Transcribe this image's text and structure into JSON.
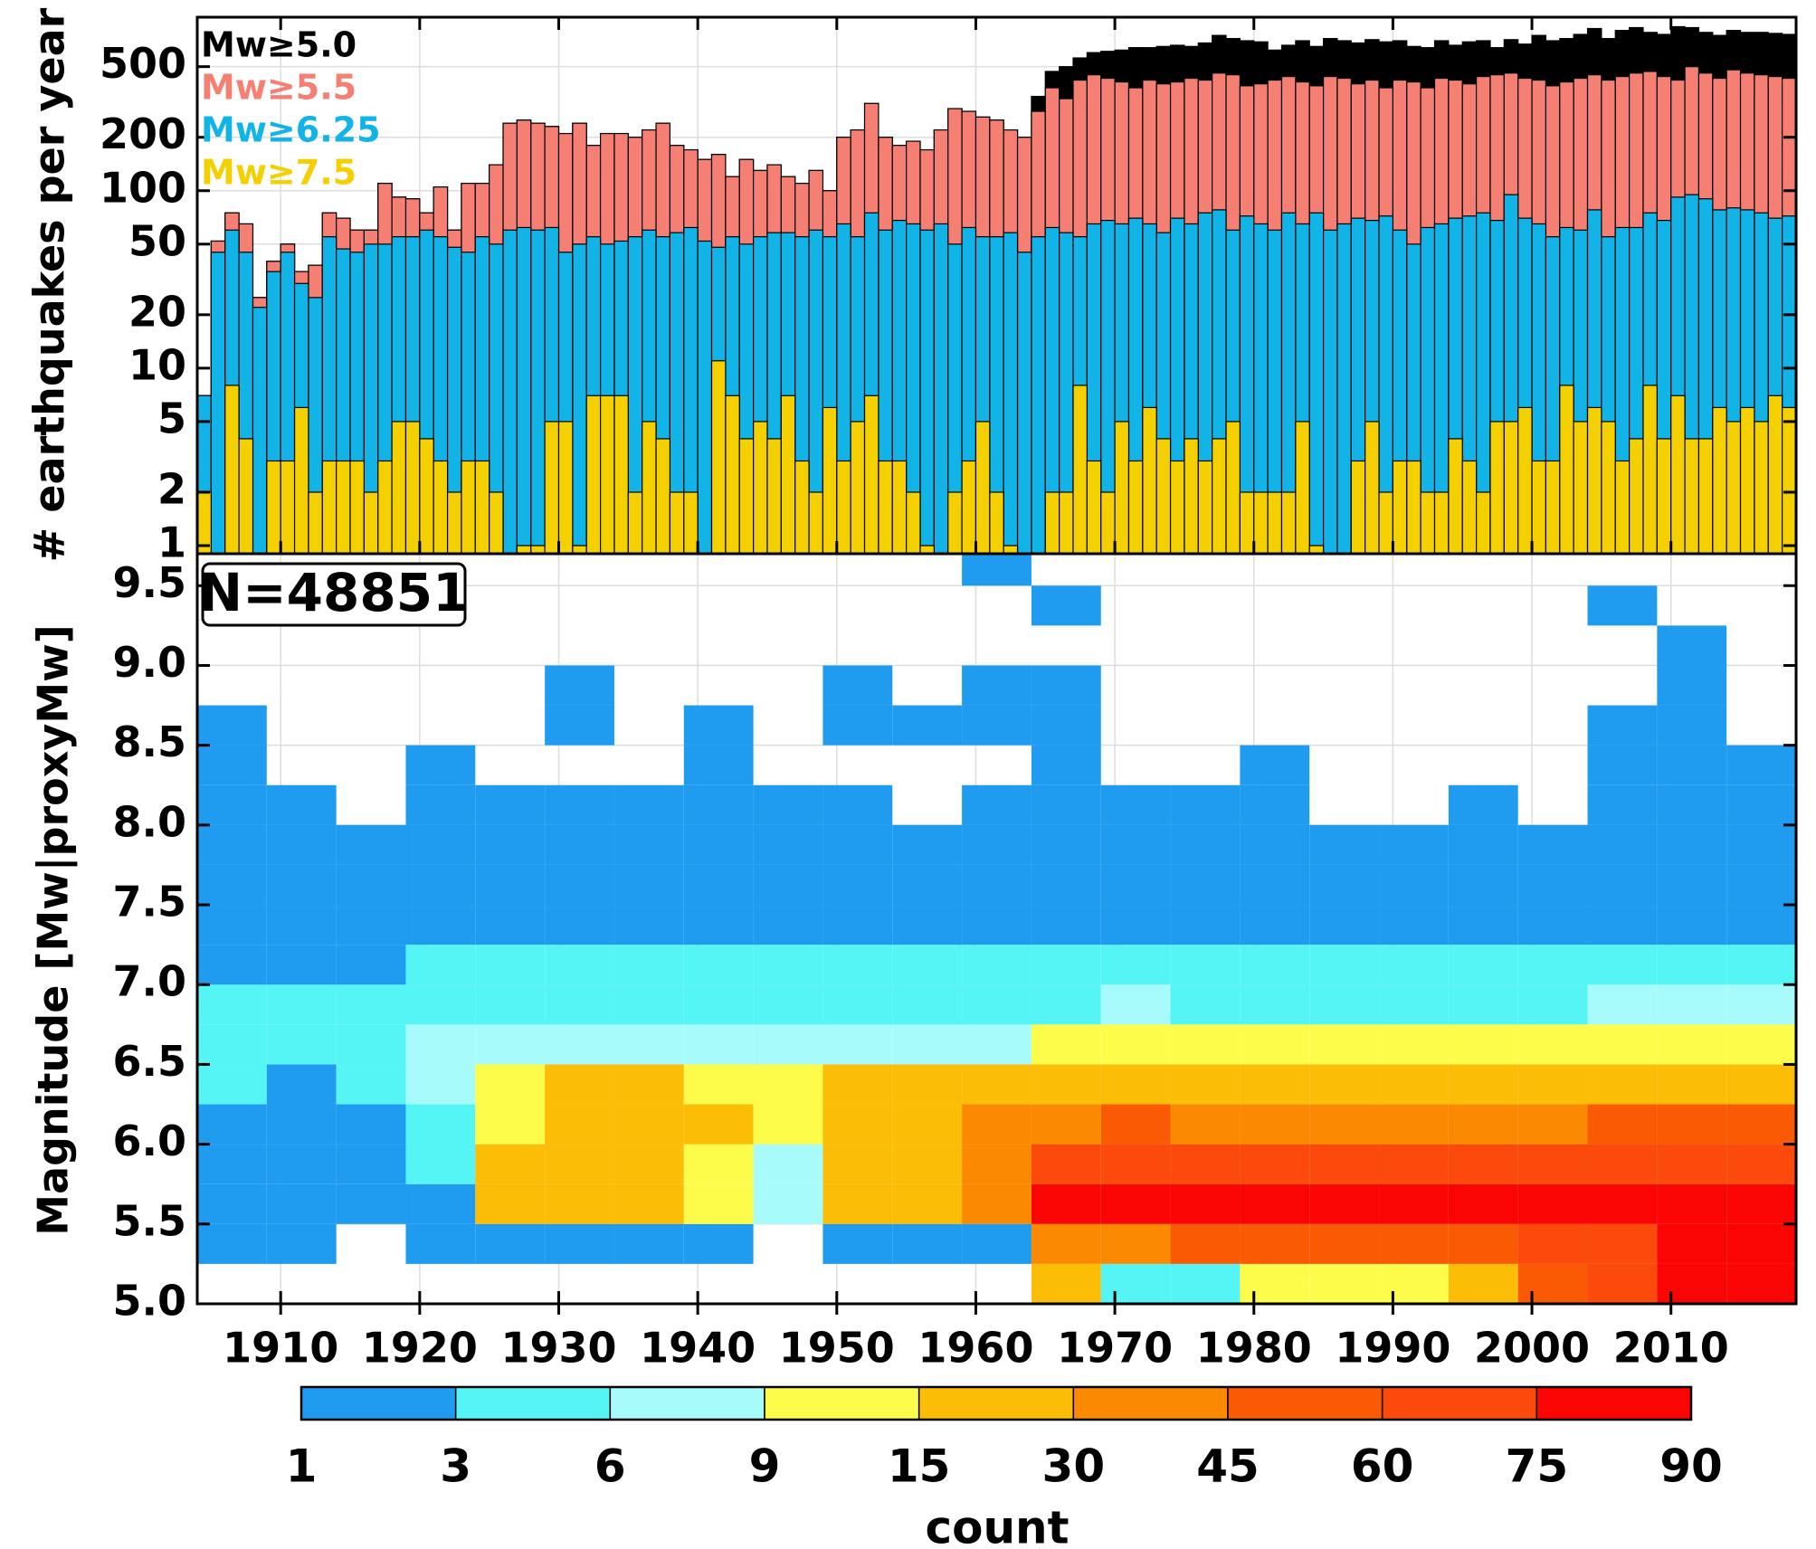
{
  "chart_data": [
    {
      "type": "bar",
      "ylabel": "# earthquakes per year",
      "log_y": true,
      "grid": true,
      "legend": "upper left",
      "x": [
        1904,
        1905,
        1906,
        1907,
        1908,
        1909,
        1910,
        1911,
        1912,
        1913,
        1914,
        1915,
        1916,
        1917,
        1918,
        1919,
        1920,
        1921,
        1922,
        1923,
        1924,
        1925,
        1926,
        1927,
        1928,
        1929,
        1930,
        1931,
        1932,
        1933,
        1934,
        1935,
        1936,
        1937,
        1938,
        1939,
        1940,
        1941,
        1942,
        1943,
        1944,
        1945,
        1946,
        1947,
        1948,
        1949,
        1950,
        1951,
        1952,
        1953,
        1954,
        1955,
        1956,
        1957,
        1958,
        1959,
        1960,
        1961,
        1962,
        1963,
        1964,
        1965,
        1966,
        1967,
        1968,
        1969,
        1970,
        1971,
        1972,
        1973,
        1974,
        1975,
        1976,
        1977,
        1978,
        1979,
        1980,
        1981,
        1982,
        1983,
        1984,
        1985,
        1986,
        1987,
        1988,
        1989,
        1990,
        1991,
        1992,
        1993,
        1994,
        1995,
        1996,
        1997,
        1998,
        1999,
        2000,
        2001,
        2002,
        2003,
        2004,
        2005,
        2006,
        2007,
        2008,
        2009,
        2010,
        2011,
        2012,
        2013,
        2014,
        2015,
        2016,
        2017,
        2018
      ],
      "xlim": [
        1904,
        2019
      ],
      "ylim": [
        0.9,
        950
      ],
      "yticks": [
        1,
        2,
        5,
        10,
        20,
        50,
        100,
        200,
        500
      ],
      "series": [
        {
          "name": "Mw≥5.0",
          "color": "#000000",
          "values": [
            7,
            52,
            75,
            65,
            25,
            40,
            50,
            35,
            38,
            75,
            70,
            60,
            60,
            110,
            92,
            90,
            75,
            105,
            60,
            110,
            110,
            140,
            240,
            250,
            240,
            230,
            210,
            240,
            180,
            210,
            210,
            200,
            220,
            240,
            180,
            170,
            150,
            160,
            120,
            150,
            130,
            140,
            120,
            110,
            130,
            100,
            200,
            220,
            310,
            200,
            180,
            190,
            170,
            220,
            290,
            280,
            260,
            250,
            220,
            200,
            340,
            470,
            500,
            560,
            600,
            610,
            620,
            640,
            640,
            650,
            660,
            650,
            680,
            750,
            720,
            700,
            690,
            620,
            660,
            700,
            650,
            720,
            700,
            680,
            710,
            690,
            700,
            650,
            640,
            700,
            660,
            690,
            700,
            640,
            710,
            670,
            750,
            700,
            720,
            760,
            820,
            720,
            800,
            830,
            780,
            760,
            840,
            830,
            780,
            750,
            800,
            780,
            780,
            770,
            760
          ]
        },
        {
          "name": "Mw≥5.5",
          "color": "#f47f72",
          "values": [
            7,
            52,
            75,
            65,
            25,
            40,
            50,
            35,
            38,
            75,
            70,
            60,
            60,
            110,
            92,
            90,
            75,
            105,
            60,
            110,
            110,
            140,
            240,
            250,
            240,
            230,
            210,
            240,
            180,
            210,
            210,
            200,
            220,
            240,
            180,
            170,
            150,
            160,
            120,
            150,
            130,
            140,
            120,
            110,
            130,
            100,
            200,
            220,
            310,
            200,
            180,
            190,
            170,
            220,
            290,
            280,
            260,
            250,
            220,
            200,
            280,
            380,
            330,
            420,
            450,
            430,
            410,
            380,
            420,
            400,
            410,
            430,
            420,
            460,
            450,
            390,
            400,
            420,
            440,
            410,
            390,
            440,
            430,
            400,
            420,
            380,
            420,
            410,
            380,
            430,
            420,
            400,
            440,
            450,
            460,
            430,
            420,
            390,
            410,
            430,
            450,
            420,
            440,
            460,
            470,
            440,
            420,
            500,
            460,
            430,
            480,
            460,
            450,
            440,
            430
          ]
        },
        {
          "name": "Mw≥6.25",
          "color": "#12b4e8",
          "values": [
            7,
            45,
            60,
            45,
            22,
            35,
            45,
            30,
            25,
            55,
            47,
            45,
            50,
            50,
            55,
            55,
            60,
            55,
            48,
            45,
            55,
            50,
            60,
            62,
            60,
            62,
            45,
            50,
            55,
            50,
            52,
            55,
            60,
            55,
            58,
            62,
            52,
            48,
            55,
            50,
            55,
            58,
            58,
            55,
            60,
            55,
            65,
            55,
            75,
            60,
            68,
            65,
            60,
            65,
            50,
            62,
            55,
            55,
            58,
            45,
            55,
            62,
            58,
            55,
            65,
            68,
            65,
            70,
            65,
            58,
            70,
            65,
            75,
            78,
            60,
            72,
            65,
            60,
            75,
            65,
            75,
            60,
            65,
            70,
            68,
            72,
            60,
            50,
            62,
            65,
            70,
            72,
            75,
            68,
            95,
            70,
            65,
            55,
            62,
            60,
            78,
            55,
            62,
            62,
            75,
            68,
            92,
            95,
            90,
            78,
            80,
            78,
            75,
            70,
            72
          ]
        },
        {
          "name": "Mw≥7.5",
          "color": "#f5d000",
          "values": [
            2,
            0,
            8,
            4,
            0,
            3,
            3,
            6,
            2,
            3,
            3,
            3,
            2,
            3,
            5,
            5,
            4,
            3,
            2,
            3,
            3,
            2,
            0,
            1,
            1,
            5,
            5,
            1,
            7,
            7,
            7,
            2,
            5,
            4,
            2,
            2,
            0,
            11,
            7,
            4,
            5,
            4,
            7,
            3,
            2,
            6,
            3,
            5,
            7,
            3,
            3,
            2,
            1,
            0,
            2,
            3,
            5,
            2,
            1,
            0,
            0,
            2,
            2,
            8,
            3,
            2,
            5,
            3,
            6,
            4,
            3,
            4,
            3,
            4,
            5,
            2,
            2,
            2,
            2,
            5,
            1,
            0,
            0,
            3,
            5,
            2,
            3,
            3,
            2,
            2,
            4,
            3,
            2,
            5,
            5,
            6,
            3,
            3,
            8,
            5,
            6,
            5,
            3,
            4,
            8,
            4,
            7,
            4,
            4,
            6,
            5,
            6,
            5,
            7,
            6
          ]
        }
      ]
    },
    {
      "type": "heatmap",
      "ylabel": "Magnitude [Mw|proxyMw]",
      "annotation": "N=48851",
      "colorbar_label": "count",
      "grid": true,
      "x": [
        1904,
        1909,
        1914,
        1919,
        1924,
        1929,
        1934,
        1939,
        1944,
        1949,
        1954,
        1959,
        1964,
        1969,
        1974,
        1979,
        1984,
        1989,
        1994,
        1999,
        2004,
        2009,
        2014,
        2019
      ],
      "y": [
        5.0,
        5.25,
        5.5,
        5.75,
        6.0,
        6.25,
        6.5,
        6.75,
        7.0,
        7.25,
        7.5,
        7.75,
        8.0,
        8.25,
        8.5,
        8.75,
        9.0,
        9.25,
        9.5,
        9.75
      ],
      "xlim": [
        1904,
        2019
      ],
      "xticks": [
        1910,
        1920,
        1930,
        1940,
        1950,
        1960,
        1970,
        1980,
        1990,
        2000,
        2010
      ],
      "ylim": [
        5.0,
        9.7
      ],
      "yticks": [
        {
          "value": 5,
          "label": "5.0"
        },
        5.5,
        {
          "value": 6,
          "label": "6.0"
        },
        6.5,
        {
          "value": 7,
          "label": "7.0"
        },
        7.5,
        {
          "value": 8,
          "label": "8.0"
        },
        8.5,
        {
          "value": 9,
          "label": "9.0"
        },
        9.5
      ],
      "levels": [
        1,
        3,
        6,
        9,
        15,
        30,
        45,
        60,
        75,
        90
      ],
      "colors": [
        "#1f9cf0",
        "#55f5f5",
        "#a8fbfb",
        "#fdfc4a",
        "#fbbd05",
        "#fb8a02",
        "#fb5a05",
        "#fb4a0c",
        "#fb0404"
      ],
      "z": [
        [
          0,
          0,
          0,
          0,
          0,
          0,
          0,
          0,
          0,
          0,
          0,
          0,
          20,
          3,
          3,
          10,
          12,
          12,
          20,
          50,
          70,
          80,
          85
        ],
        [
          1,
          1,
          0,
          1,
          2,
          2,
          1,
          1,
          0,
          1,
          1,
          1,
          40,
          40,
          45,
          50,
          50,
          55,
          55,
          60,
          65,
          80,
          85
        ],
        [
          2,
          2,
          2,
          2,
          20,
          20,
          15,
          10,
          6,
          20,
          20,
          30,
          80,
          85,
          85,
          85,
          80,
          80,
          80,
          80,
          80,
          85,
          85
        ],
        [
          2,
          2,
          2,
          3,
          15,
          20,
          20,
          12,
          8,
          20,
          25,
          35,
          60,
          65,
          65,
          65,
          60,
          60,
          60,
          65,
          65,
          70,
          70
        ],
        [
          2,
          2,
          2,
          3,
          12,
          20,
          20,
          15,
          10,
          20,
          25,
          30,
          40,
          45,
          40,
          40,
          40,
          40,
          40,
          40,
          45,
          45,
          50
        ],
        [
          3,
          2,
          3,
          8,
          10,
          18,
          15,
          12,
          10,
          15,
          18,
          18,
          20,
          20,
          20,
          20,
          20,
          20,
          20,
          20,
          20,
          20,
          20
        ],
        [
          3,
          3,
          5,
          8,
          7,
          8,
          8,
          7,
          6,
          8,
          8,
          8,
          10,
          10,
          10,
          10,
          10,
          10,
          10,
          10,
          11,
          12,
          11
        ],
        [
          3,
          3,
          4,
          5,
          4,
          5,
          5,
          4,
          4,
          5,
          5,
          5,
          5,
          6,
          5,
          5,
          5,
          5,
          5,
          5,
          6,
          6,
          6
        ],
        [
          2,
          2,
          2,
          3,
          3,
          3,
          3,
          3,
          3,
          3,
          3,
          3,
          3,
          3,
          3,
          3,
          3,
          3,
          3,
          3,
          3,
          3,
          3
        ],
        [
          2,
          1,
          2,
          2,
          2,
          2,
          2,
          2,
          2,
          2,
          2,
          2,
          2,
          2,
          2,
          2,
          2,
          2,
          2,
          2,
          2,
          2,
          2
        ],
        [
          1,
          1,
          1,
          1,
          1,
          1,
          1,
          1,
          1,
          1,
          1,
          1,
          1,
          1,
          1,
          1,
          1,
          1,
          1,
          1,
          1,
          1,
          1
        ],
        [
          1,
          1,
          1,
          1,
          1,
          1,
          1,
          1,
          1,
          1,
          1,
          1,
          1,
          1,
          1,
          1,
          1,
          1,
          1,
          1,
          1,
          1,
          1
        ],
        [
          1,
          1,
          0,
          1,
          1,
          1,
          1,
          1,
          1,
          1,
          0,
          1,
          1,
          1,
          1,
          1,
          0,
          0,
          1,
          0,
          1,
          1,
          1
        ],
        [
          1,
          0,
          0,
          1,
          0,
          0,
          0,
          1,
          0,
          0,
          0,
          0,
          1,
          0,
          0,
          1,
          0,
          0,
          0,
          0,
          1,
          1,
          1
        ],
        [
          1,
          0,
          0,
          0,
          0,
          1,
          0,
          1,
          0,
          1,
          1,
          1,
          1,
          0,
          0,
          0,
          0,
          0,
          0,
          0,
          1,
          1,
          0
        ],
        [
          0,
          0,
          0,
          0,
          0,
          1,
          0,
          0,
          0,
          1,
          0,
          1,
          1,
          0,
          0,
          0,
          0,
          0,
          0,
          0,
          0,
          1,
          0
        ],
        [
          0,
          0,
          0,
          0,
          0,
          0,
          0,
          0,
          0,
          0,
          0,
          0,
          0,
          0,
          0,
          0,
          0,
          0,
          0,
          0,
          0,
          1,
          0
        ],
        [
          0,
          0,
          0,
          0,
          0,
          0,
          0,
          0,
          0,
          0,
          0,
          0,
          1,
          0,
          0,
          0,
          0,
          0,
          0,
          0,
          1,
          0,
          0
        ],
        [
          0,
          0,
          0,
          0,
          0,
          0,
          0,
          0,
          0,
          0,
          0,
          1,
          0,
          0,
          0,
          0,
          0,
          0,
          0,
          0,
          0,
          0,
          0
        ]
      ]
    }
  ]
}
